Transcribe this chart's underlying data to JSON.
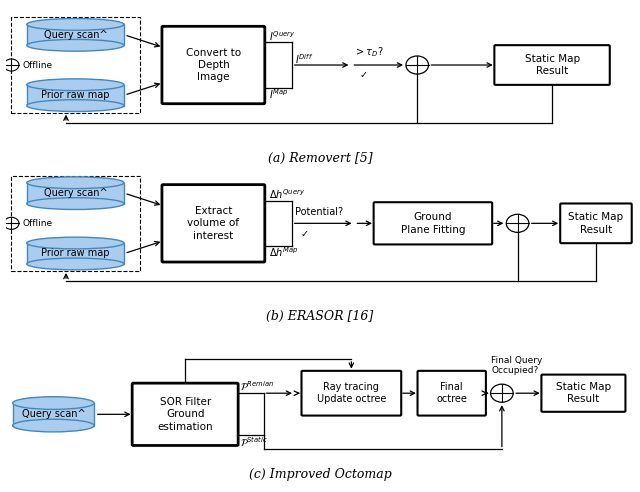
{
  "fig_width": 6.4,
  "fig_height": 4.92,
  "bg_color": "#ffffff",
  "caption_a": "(a) Removert [5]",
  "caption_b": "(b) ERASOR [16]",
  "caption_c": "(c) Improved Octomap",
  "blue_fill": "#aaccee",
  "blue_edge": "#4488bb",
  "black": "#000000",
  "white": "#ffffff"
}
